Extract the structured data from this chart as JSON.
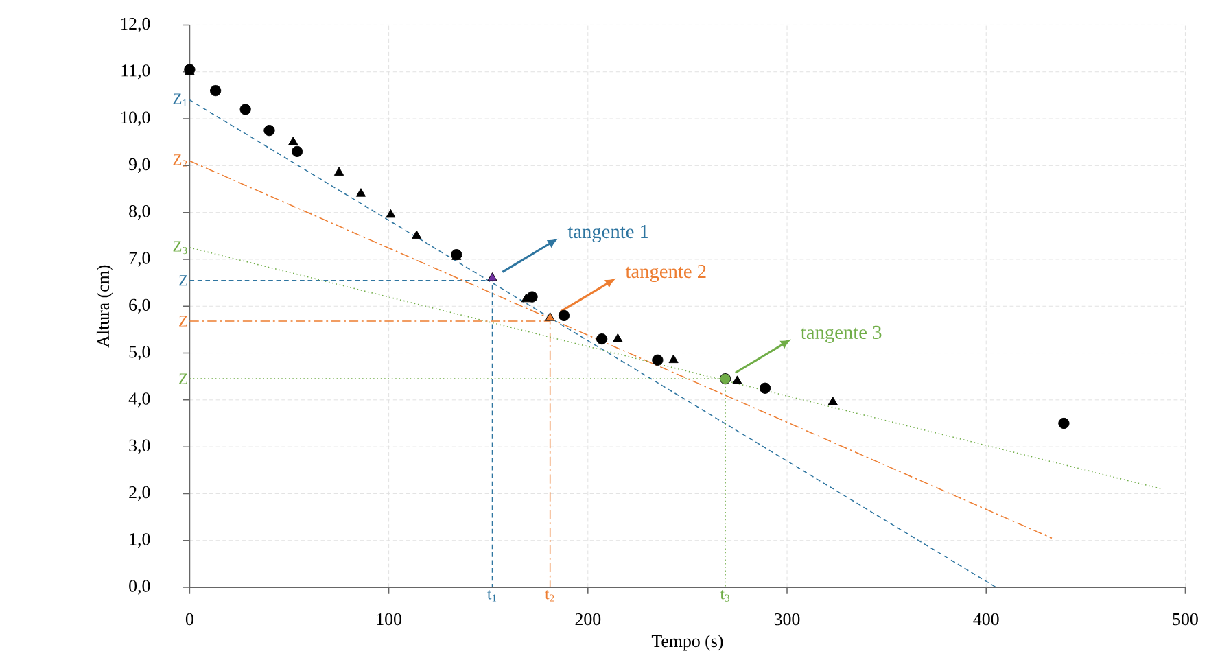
{
  "chart_data": {
    "type": "scatter",
    "xlabel": "Tempo (s)",
    "ylabel": "Altura (cm)",
    "xlim": [
      0,
      500
    ],
    "xticks": [
      0,
      100,
      200,
      300,
      400,
      500
    ],
    "ylim": [
      0,
      12
    ],
    "yticks": [
      {
        "value": 0,
        "label": "0,0"
      },
      {
        "value": 1,
        "label": "1,0"
      },
      {
        "value": 2,
        "label": "2,0"
      },
      {
        "value": 3,
        "label": "3,0"
      },
      {
        "value": 4,
        "label": "4,0"
      },
      {
        "value": 5,
        "label": "5,0"
      },
      {
        "value": 6,
        "label": "6,0"
      },
      {
        "value": 7,
        "label": "7,0"
      },
      {
        "value": 8,
        "label": "8,0"
      },
      {
        "value": 9,
        "label": "9,0"
      },
      {
        "value": 10,
        "label": "10,0"
      },
      {
        "value": 11,
        "label": "11,0"
      },
      {
        "value": 12,
        "label": "12,0"
      }
    ],
    "grid": true,
    "series": [
      {
        "type": "line",
        "color": "#2e75a0",
        "line_style": "dashed",
        "x": [
          0,
          405
        ],
        "values": [
          10.4,
          0
        ]
      },
      {
        "type": "line",
        "color": "#2e75a0",
        "line_style": "dashed",
        "x": [
          0,
          152,
          152
        ],
        "values": [
          6.55,
          6.55,
          0
        ]
      },
      {
        "type": "line",
        "color": "#ed7d31",
        "line_style": "dashdot",
        "x": [
          0,
          433
        ],
        "values": [
          9.1,
          1.05
        ]
      },
      {
        "type": "line",
        "color": "#ed7d31",
        "line_style": "dashdot",
        "x": [
          0,
          181,
          181
        ],
        "values": [
          5.68,
          5.68,
          0
        ]
      },
      {
        "type": "line",
        "color": "#70ad47",
        "line_style": "dotted",
        "x": [
          0,
          488
        ],
        "values": [
          7.25,
          2.1
        ]
      },
      {
        "type": "line",
        "color": "#70ad47",
        "line_style": "dotted",
        "x": [
          0,
          269,
          269
        ],
        "values": [
          4.45,
          4.45,
          0
        ]
      },
      {
        "color": "#000000",
        "marker": "circle",
        "x": [
          0,
          13,
          28,
          40,
          54,
          134,
          172,
          188,
          207,
          235,
          289,
          439
        ],
        "values": [
          11.05,
          10.6,
          10.2,
          9.75,
          9.3,
          7.1,
          6.2,
          5.8,
          5.3,
          4.85,
          4.25,
          3.5
        ]
      },
      {
        "color": "#000000",
        "marker": "triangle",
        "x": [
          0,
          52,
          75,
          86,
          101,
          114,
          134,
          169,
          215,
          243,
          275,
          323
        ],
        "values": [
          11.0,
          9.5,
          8.85,
          8.4,
          7.95,
          7.5,
          7.05,
          6.15,
          5.3,
          4.85,
          4.4,
          3.95
        ]
      },
      {
        "color": "#7030a0",
        "marker": "triangle",
        "x": [
          152
        ],
        "values": [
          6.6
        ]
      },
      {
        "color": "#ed7d31",
        "marker": "triangle",
        "x": [
          181
        ],
        "values": [
          5.75
        ]
      },
      {
        "color": "#70ad47",
        "marker": "circle",
        "x": [
          269
        ],
        "values": [
          4.45
        ]
      }
    ],
    "annotations": [
      {
        "text": "Z$_{1}$",
        "x": 0,
        "y": 10.4
      },
      {
        "text": "Z",
        "x": 0,
        "y": 6.55
      },
      {
        "text": "t$_{1}$",
        "x": 152,
        "y": 0
      },
      {
        "text": "tangente 1",
        "x": 152,
        "y": 6.6
      },
      {
        "text": "Z$_{2}$",
        "x": 0,
        "y": 9.1
      },
      {
        "text": "Z",
        "x": 0,
        "y": 5.68
      },
      {
        "text": "t$_{2}$",
        "x": 181,
        "y": 0
      },
      {
        "text": "tangente 2",
        "x": 181,
        "y": 5.75
      },
      {
        "text": "Z$_{3}$",
        "x": 0,
        "y": 7.25
      },
      {
        "text": "Z",
        "x": 0,
        "y": 4.45
      },
      {
        "text": "t$_{3}$",
        "x": 269,
        "y": 0
      },
      {
        "text": "tangente 3",
        "x": 269,
        "y": 4.45
      }
    ]
  }
}
